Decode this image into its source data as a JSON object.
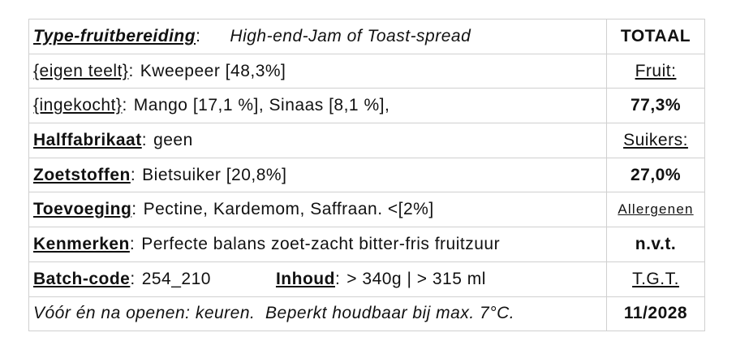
{
  "rows": [
    {
      "label": "Type-fruitbereiding",
      "sep": ":",
      "value": "High-end-Jam of Toast-spread",
      "right": "TOTAAL"
    },
    {
      "label": "{eigen teelt}",
      "sep": ":",
      "value": "Kweepeer [48,3%]",
      "right": "Fruit:"
    },
    {
      "label": "{ingekocht}",
      "sep": ":",
      "value": "Mango [17,1 %], Sinaas [8,1 %],",
      "right": "77,3%"
    },
    {
      "label": "Halffabrikaat",
      "sep": ":",
      "value": "geen",
      "right": "Suikers:"
    },
    {
      "label": "Zoetstoffen",
      "sep": ":",
      "value": "Bietsuiker [20,8%]",
      "right": "27,0%"
    },
    {
      "label": "Toevoeging",
      "sep": ":",
      "value": "Pectine, Kardemom, Saffraan. <[2%]",
      "right": "Allergenen"
    },
    {
      "label": "Kenmerken",
      "sep": ":",
      "value": "Perfecte balans zoet-zacht bitter-fris fruitzuur",
      "right": "n.v.t."
    },
    {
      "label": "Batch-code",
      "sep": ":",
      "value": "254_210",
      "label2": "Inhoud",
      "sep2": ":",
      "value2": "> 340g | > 315 ml",
      "right": "T.G.T."
    },
    {
      "note": "Vóór én na openen: keuren.  Beperkt houdbaar bij max. 7°C.",
      "right": "11/2028"
    }
  ]
}
